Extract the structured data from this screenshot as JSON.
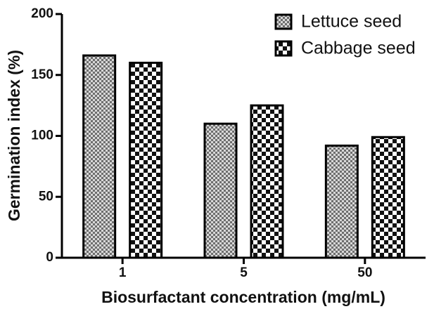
{
  "chart_data": {
    "type": "bar",
    "x_label": "Biosurfactant concentration (mg/mL)",
    "y_label": "Germination index (%)",
    "categories": [
      "1",
      "5",
      "50"
    ],
    "series": [
      {
        "name": "Lettuce seed",
        "color": "#6e6e6e",
        "values": [
          166,
          110,
          92
        ]
      },
      {
        "name": "Cabbage seed",
        "color": "#111111",
        "values": [
          160,
          125,
          99
        ]
      }
    ],
    "ylim": [
      0,
      200
    ],
    "yticks": [
      0,
      50,
      100,
      150,
      200
    ],
    "legend": "upper right",
    "grid": false
  }
}
